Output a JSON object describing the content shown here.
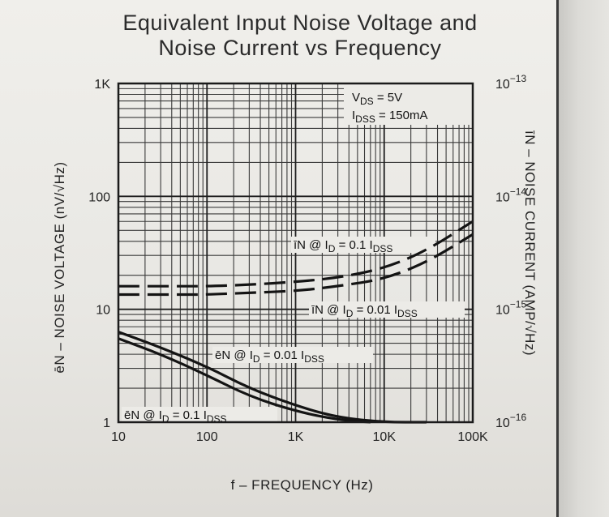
{
  "chart_data": {
    "type": "line",
    "title_lines": [
      "Equivalent Input Noise Voltage and",
      "Noise Current vs Frequency"
    ],
    "xlabel": "f – FREQUENCY (Hz)",
    "ylabel_left": "ēN – NOISE VOLTAGE (nV/√Hz)",
    "ylabel_right": "īN – NOISE CURRENT (AMP/√Hz)",
    "x_scale": "log",
    "y_scale": "log",
    "xlim": [
      10,
      100000
    ],
    "ylim_left": [
      1,
      1000
    ],
    "ylim_right": [
      1e-16,
      1e-13
    ],
    "grid": true,
    "x_ticks": [
      "10",
      "100",
      "1K",
      "10K",
      "100K"
    ],
    "y_ticks_left": [
      "1",
      "10",
      "100",
      "1K"
    ],
    "y_ticks_right": [
      {
        "base": "10",
        "exp": "−16"
      },
      {
        "base": "10",
        "exp": "−15"
      },
      {
        "base": "10",
        "exp": "−14"
      },
      {
        "base": "10",
        "exp": "−13"
      }
    ],
    "conditions": [
      "V₀ₛ = 5V",
      "I₀ₛₛ = 150mA"
    ],
    "conditions_parts": [
      {
        "main": "V",
        "sub": "DS",
        "rest": " = 5V"
      },
      {
        "main": "I",
        "sub": "DSS",
        "rest": " = 150mA"
      }
    ],
    "series": [
      {
        "name": "īN @ ID = 0.1 IDSS",
        "label_parts": {
          "pre": "īN @ I",
          "sub1": "D",
          "mid": " = 0.1 I",
          "sub2": "DSS"
        },
        "axis": "right",
        "style": "dashed",
        "x": [
          10,
          50,
          100,
          300,
          1000,
          3000,
          10000,
          30000,
          100000
        ],
        "y": [
          1.6e-15,
          1.6e-15,
          1.6e-15,
          1.65e-15,
          1.75e-15,
          1.9e-15,
          2.3e-15,
          3.3e-15,
          6e-15
        ]
      },
      {
        "name": "īN @ ID = 0.01 IDSS",
        "label_parts": {
          "pre": "īN @ I",
          "sub1": "D",
          "mid": " = 0.01 I",
          "sub2": "DSS"
        },
        "axis": "right",
        "style": "dashed",
        "x": [
          10,
          50,
          100,
          300,
          1000,
          3000,
          10000,
          30000,
          100000
        ],
        "y": [
          1.35e-15,
          1.35e-15,
          1.35e-15,
          1.4e-15,
          1.45e-15,
          1.6e-15,
          1.85e-15,
          2.6e-15,
          4.6e-15
        ]
      },
      {
        "name": "ēN @ ID = 0.01 IDSS",
        "label_parts": {
          "pre": "ēN @ I",
          "sub1": "D",
          "mid": " = 0.01 I",
          "sub2": "DSS"
        },
        "axis": "left",
        "style": "solid",
        "x": [
          10,
          30,
          100,
          300,
          1000,
          3000,
          10000,
          30000
        ],
        "y": [
          6.3,
          4.6,
          3.1,
          2.0,
          1.4,
          1.1,
          1.0,
          1.0
        ]
      },
      {
        "name": "ēN @ ID = 0.1 IDSS",
        "label_parts": {
          "pre": "ēN @ I",
          "sub1": "D",
          "mid": " = 0.1 I",
          "sub2": "DSS"
        },
        "axis": "left",
        "style": "solid",
        "x": [
          10,
          30,
          100,
          300,
          1000,
          3000,
          7000
        ],
        "y": [
          5.5,
          4.0,
          2.6,
          1.7,
          1.25,
          1.05,
          1.0
        ]
      }
    ]
  }
}
